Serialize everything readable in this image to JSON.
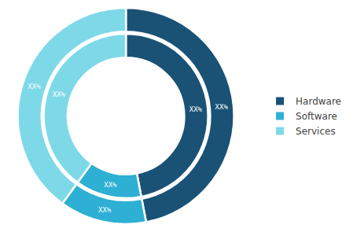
{
  "chart_data": {
    "type": "donut",
    "categories": [
      "Hardware",
      "Software",
      "Services"
    ],
    "series": [
      {
        "values": [
          47,
          13,
          40
        ],
        "colors": [
          "#1a5276",
          "#2eafd4",
          "#7dd9e8"
        ],
        "value_labels": [
          "XX%",
          "XX%",
          "XX%"
        ]
      },
      {
        "values": [
          47,
          13,
          40
        ],
        "colors": [
          "#1a5276",
          "#2eafd4",
          "#7dd9e8"
        ],
        "value_labels": [
          "XX%",
          "XX%",
          "XX%"
        ]
      }
    ],
    "data_labels": true,
    "legend": "right"
  }
}
